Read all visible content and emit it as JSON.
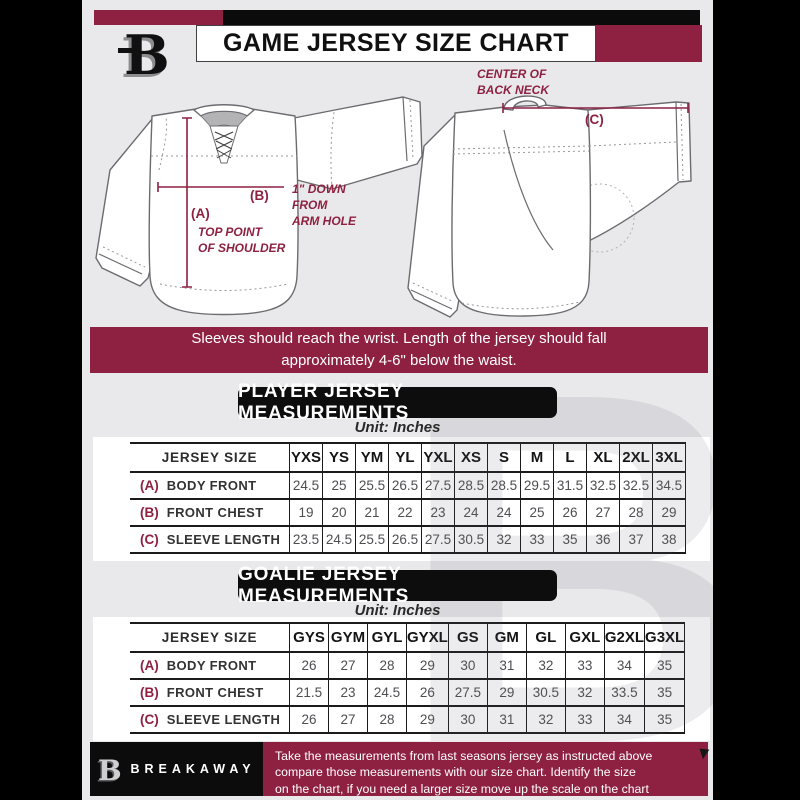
{
  "colors": {
    "accent": "#8e2142",
    "black": "#0d0d0d",
    "background": "#e9e9eb"
  },
  "header": {
    "title": "GAME JERSEY SIZE CHART"
  },
  "diagram": {
    "front": {
      "a_key": "(A)",
      "a_label": "TOP POINT\nOF SHOULDER",
      "b_key": "(B)",
      "b_label": "1\" DOWN\nFROM\nARM HOLE"
    },
    "back": {
      "c_key": "(C)",
      "c_label": "CENTER OF\nBACK NECK"
    }
  },
  "notice": "Sleeves should reach the wrist. Length of the jersey should fall\napproximately 4-6\" below the waist.",
  "player_section": {
    "heading": "PLAYER JERSEY MEASUREMENTS",
    "unit": "Unit: Inches"
  },
  "goalie_section": {
    "heading": "GOALIE JERSEY MEASUREMENTS",
    "unit": "Unit: Inches"
  },
  "player_table": {
    "size_header": "JERSEY SIZE",
    "columns": [
      "YXS",
      "YS",
      "YM",
      "YL",
      "YXL",
      "XS",
      "S",
      "M",
      "L",
      "XL",
      "2XL",
      "3XL"
    ],
    "rows": [
      {
        "key": "(A)",
        "label": "BODY FRONT",
        "values": [
          "24.5",
          "25",
          "25.5",
          "26.5",
          "27.5",
          "28.5",
          "28.5",
          "29.5",
          "31.5",
          "32.5",
          "32.5",
          "34.5"
        ]
      },
      {
        "key": "(B)",
        "label": "FRONT CHEST",
        "values": [
          "19",
          "20",
          "21",
          "22",
          "23",
          "24",
          "24",
          "25",
          "26",
          "27",
          "28",
          "29"
        ]
      },
      {
        "key": "(C)",
        "label": "SLEEVE LENGTH",
        "values": [
          "23.5",
          "24.5",
          "25.5",
          "26.5",
          "27.5",
          "30.5",
          "32",
          "33",
          "35",
          "36",
          "37",
          "38"
        ]
      }
    ]
  },
  "goalie_table": {
    "size_header": "JERSEY SIZE",
    "columns": [
      "GYS",
      "GYM",
      "GYL",
      "GYXL",
      "GS",
      "GM",
      "GL",
      "GXL",
      "G2XL",
      "G3XL"
    ],
    "rows": [
      {
        "key": "(A)",
        "label": "BODY FRONT",
        "values": [
          "26",
          "27",
          "28",
          "29",
          "30",
          "31",
          "32",
          "33",
          "34",
          "35"
        ]
      },
      {
        "key": "(B)",
        "label": "FRONT CHEST",
        "values": [
          "21.5",
          "23",
          "24.5",
          "26",
          "27.5",
          "29",
          "30.5",
          "32",
          "33.5",
          "35"
        ]
      },
      {
        "key": "(C)",
        "label": "SLEEVE LENGTH",
        "values": [
          "26",
          "27",
          "28",
          "29",
          "30",
          "31",
          "32",
          "33",
          "34",
          "35"
        ]
      }
    ]
  },
  "footer": {
    "brand": "BREAKAWAY",
    "text": "Take the measurements from last seasons jersey as instructed above\ncompare those measurements  with our size chart. Identify the size\non the chart, if you need a larger size move up the scale on the chart"
  },
  "watermark": "B"
}
